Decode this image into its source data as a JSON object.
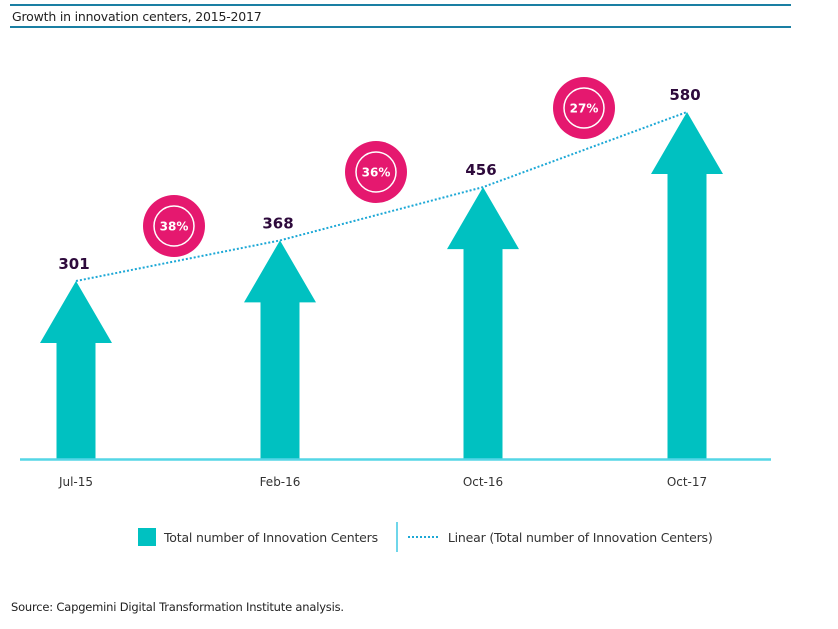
{
  "title": "Growth in innovation centers, 2015-2017",
  "source": "Source: Capgemini Digital Transformation Institute analysis.",
  "colors": {
    "arrow": "#00c1c1",
    "bubble": "#e5186f",
    "trend": "#1da8d6",
    "label": "#2e0a3c",
    "axis": "#55d6e6",
    "rule": "#1a7fa3"
  },
  "chart_data": {
    "type": "bar",
    "title": "Growth in innovation centers, 2015-2017",
    "categories": [
      "Jul-15",
      "Feb-16",
      "Oct-16",
      "Oct-17"
    ],
    "series": [
      {
        "name": "Total number of Innovation Centers",
        "values": [
          301,
          368,
          456,
          580
        ],
        "mark": "arrow"
      }
    ],
    "trendline": {
      "name": "Linear (Total number of Innovation Centers)",
      "type": "linear"
    },
    "growth_labels": [
      "38%",
      "36%",
      "27%"
    ],
    "data_labels": [
      "301",
      "368",
      "456",
      "580"
    ],
    "xlabel": "",
    "ylabel": "",
    "ylim": [
      0,
      580
    ],
    "grid": false,
    "legend": "bottom"
  },
  "legend": {
    "items": [
      {
        "label": "Total number of Innovation Centers",
        "icon": "teal-square-swatch"
      },
      {
        "label": "Linear (Total number of Innovation Centers)",
        "icon": "dotted-line-swatch"
      }
    ]
  }
}
